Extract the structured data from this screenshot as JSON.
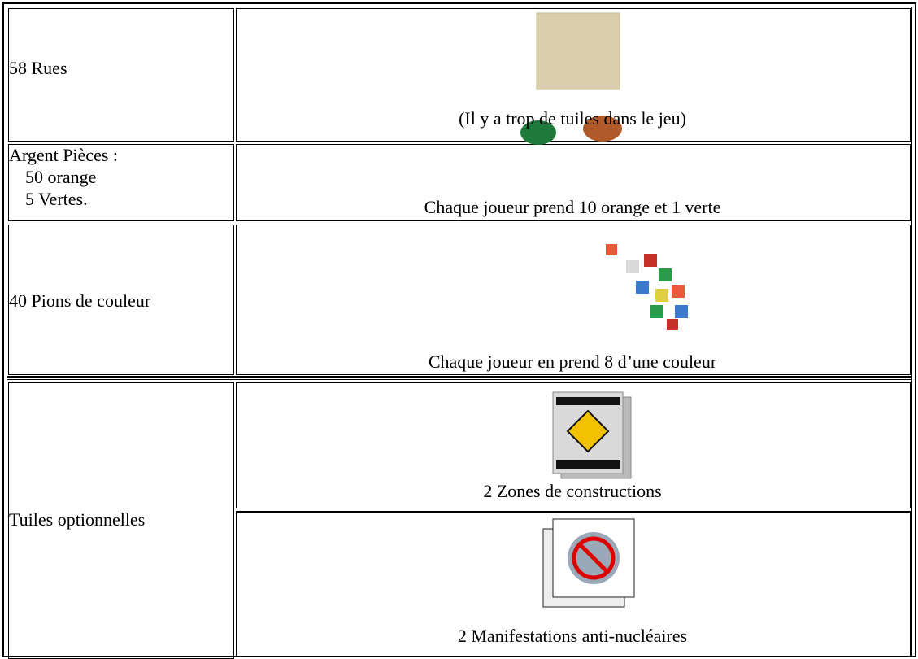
{
  "table": {
    "rows": [
      {
        "label": [
          "58 Rues"
        ],
        "items": [
          "(Il y a trop de tuiles dans le jeu)"
        ]
      },
      {
        "label": [
          "Argent Pièces :",
          "50 orange",
          "5 Vertes."
        ],
        "items": [
          "Chaque joueur prend 10 orange et 1 verte"
        ]
      },
      {
        "label": [
          "40 Pions de couleur"
        ],
        "items": [
          "Chaque joueur en prend 8 d’une couleur"
        ]
      },
      {
        "label": [
          "Tuiles optionnelles"
        ],
        "items": [
          "2 Zones de constructions",
          "2 Manifestations anti-nucléaires"
        ]
      }
    ]
  }
}
